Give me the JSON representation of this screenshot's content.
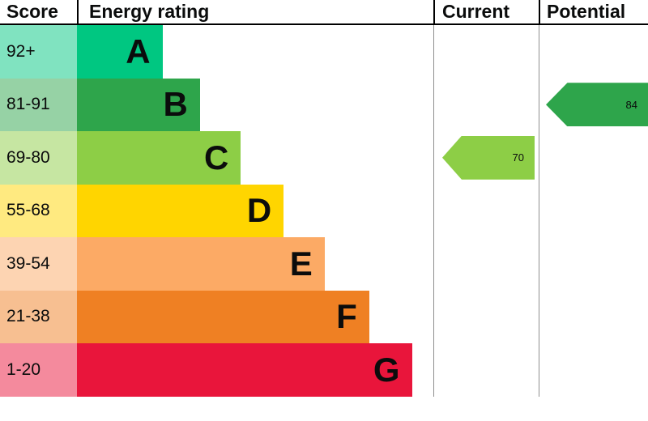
{
  "header": {
    "score": "Score",
    "rating": "Energy rating",
    "current": "Current",
    "potential": "Potential"
  },
  "chart_data": {
    "type": "bar",
    "title": "Energy rating",
    "description": "EPC energy efficiency rating chart with score bands A-G and current/potential rating arrows",
    "bands": [
      {
        "letter": "A",
        "score_range": "92+",
        "color": "#00c781",
        "score_bg": "#80e3c0"
      },
      {
        "letter": "B",
        "score_range": "81-91",
        "color": "#2ea54b",
        "score_bg": "#96d2a5"
      },
      {
        "letter": "C",
        "score_range": "69-80",
        "color": "#8dce46",
        "score_bg": "#c6e6a2"
      },
      {
        "letter": "D",
        "score_range": "55-68",
        "color": "#ffd500",
        "score_bg": "#ffea80"
      },
      {
        "letter": "E",
        "score_range": "39-54",
        "color": "#fcaa65",
        "score_bg": "#fdd4b2"
      },
      {
        "letter": "F",
        "score_range": "21-38",
        "color": "#ef8023",
        "score_bg": "#f7bf91"
      },
      {
        "letter": "G",
        "score_range": "1-20",
        "color": "#e9153b",
        "score_bg": "#f48a9d"
      }
    ],
    "markers": {
      "current": {
        "label": "Current",
        "value": "70",
        "band": "C",
        "color": "#8dce46"
      },
      "potential": {
        "label": "Potential",
        "value": "84",
        "band": "B",
        "color": "#2ea54b"
      }
    }
  }
}
